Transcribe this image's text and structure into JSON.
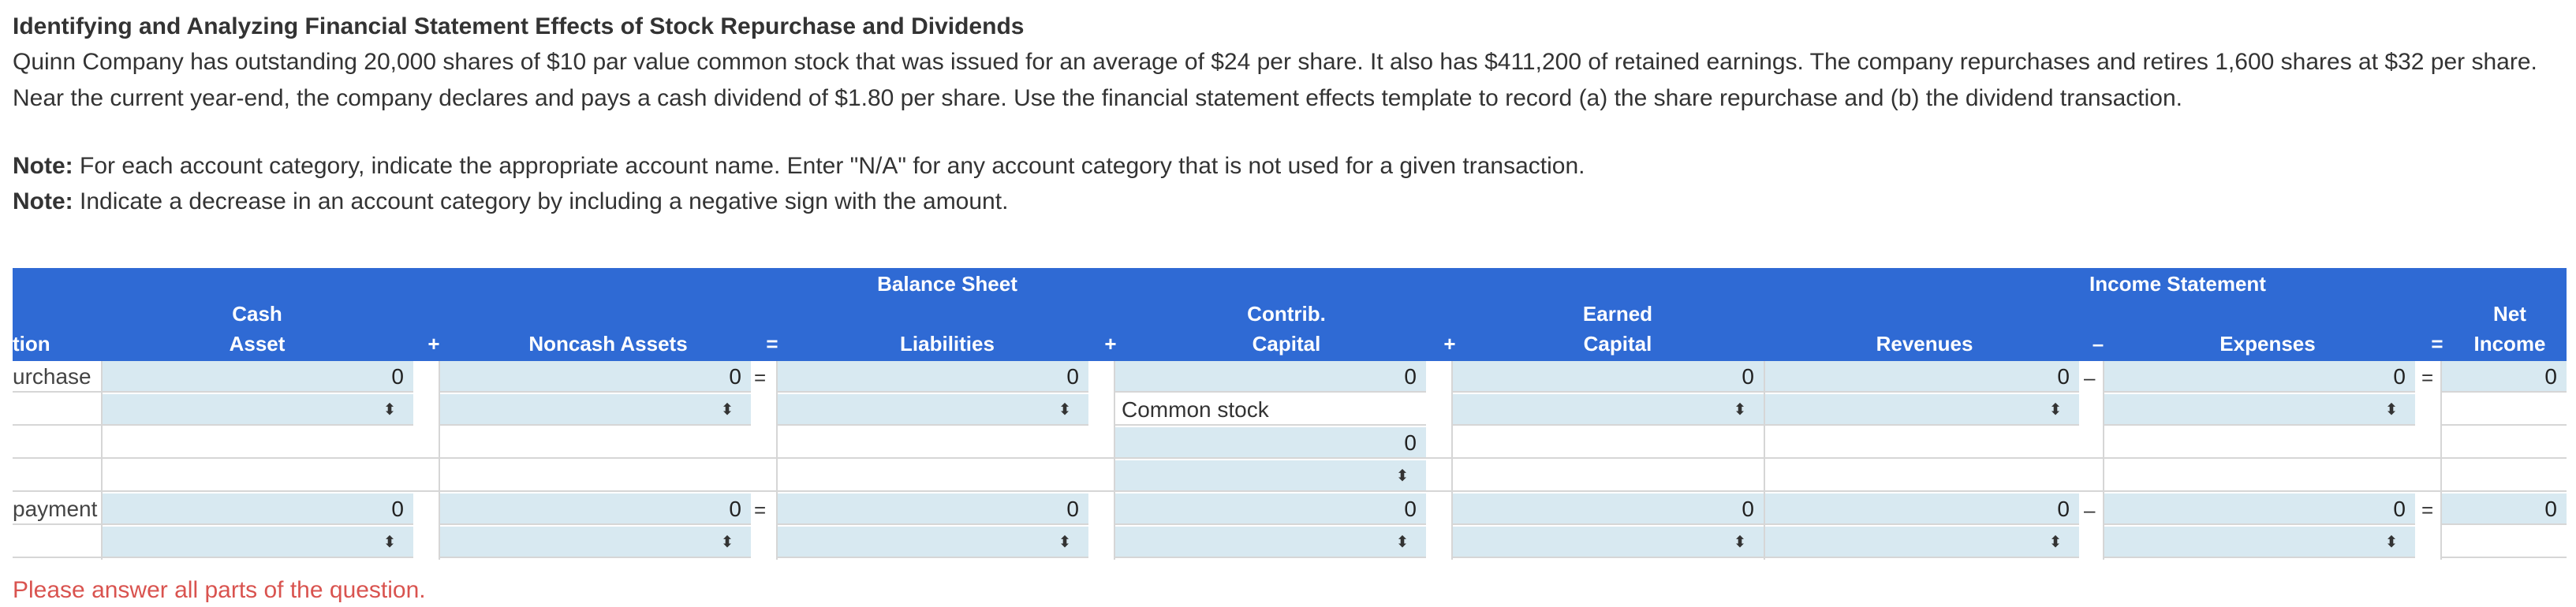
{
  "header": {
    "title": "Identifying and Analyzing Financial Statement Effects of Stock Repurchase and Dividends",
    "body": "Quinn Company has outstanding 20,000 shares of $10 par value common stock that was issued for an average of $24 per share. It also has $411,200 of retained earnings. The company repurchases and retires 1,600 shares at $32 per share. Near the current year-end, the company declares and pays a cash dividend of $1.80 per share. Use the financial statement effects template to record (a) the share repurchase and (b) the dividend transaction."
  },
  "notes": [
    {
      "label": "Note:",
      "text": " For each account category, indicate the appropriate account name. Enter \"N/A\" for any account category that is not used for a given transaction."
    },
    {
      "label": "Note:",
      "text": " Indicate a decrease in an account category by including a negative sign with the amount."
    }
  ],
  "table": {
    "group_headers": {
      "balance_sheet": "Balance Sheet",
      "income_statement": "Income Statement"
    },
    "columns": {
      "transaction": "tion",
      "cash_1": "Cash",
      "cash_2": "Asset",
      "plus_1": "+",
      "noncash": "Noncash Assets",
      "eq_1": "=",
      "liabilities": "Liabilities",
      "plus_2": "+",
      "contrib_1": "Contrib.",
      "contrib_2": "Capital",
      "plus_3": "+",
      "earned_1": "Earned",
      "earned_2": "Capital",
      "revenues": "Revenues",
      "minus": "–",
      "expenses": "Expenses",
      "eq_2": "=",
      "net_1": "Net",
      "net_2": "Income"
    },
    "rows": {
      "repurchase": {
        "label": "urchase",
        "cash": "0",
        "noncash": "0",
        "liabilities": "0",
        "contrib": "0",
        "earned": "0",
        "revenues": "0",
        "expenses": "0",
        "net": "0",
        "contrib_account": "Common stock",
        "contrib_second": "0"
      },
      "payment": {
        "label": "payment",
        "cash": "0",
        "noncash": "0",
        "liabilities": "0",
        "contrib": "0",
        "earned": "0",
        "revenues": "0",
        "expenses": "0",
        "net": "0"
      }
    },
    "symbols": {
      "eq": "=",
      "minus": "–",
      "arrows": "⬍"
    }
  },
  "error_message": "Please answer all parts of the question."
}
